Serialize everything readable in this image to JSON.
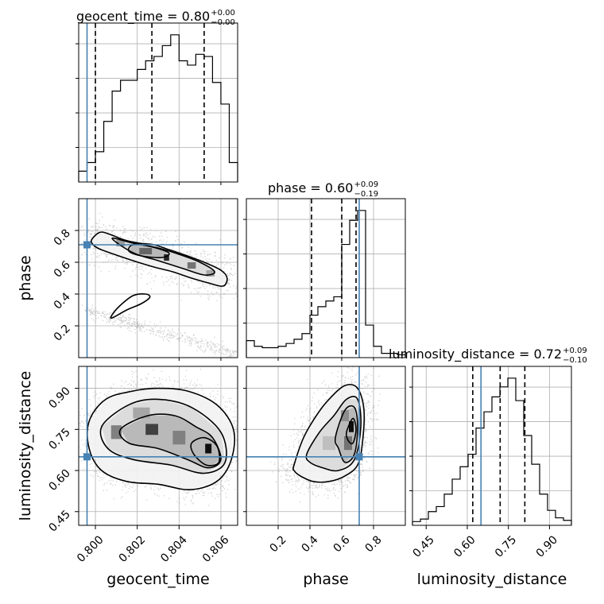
{
  "chart_data": {
    "type": "corner",
    "parameters": [
      "geocent_time",
      "phase",
      "luminosity_distance"
    ],
    "ranges": {
      "geocent_time": [
        0.7992,
        0.8068
      ],
      "phase": [
        0.0,
        1.0
      ],
      "luminosity_distance": [
        0.4,
        0.98
      ]
    },
    "ticks": {
      "geocent_time": [
        0.8,
        0.802,
        0.804,
        0.806
      ],
      "phase": [
        0.2,
        0.4,
        0.6,
        0.8
      ],
      "luminosity_distance": [
        0.45,
        0.6,
        0.75,
        0.9
      ]
    },
    "tick_labels": {
      "geocent_time": [
        "0.800",
        "0.802",
        "0.804",
        "0.806"
      ],
      "phase": [
        "0.2",
        "0.4",
        "0.6",
        "0.8"
      ],
      "luminosity_distance": [
        "0.45",
        "0.60",
        "0.75",
        "0.90"
      ]
    },
    "truths": {
      "geocent_time": 0.7996,
      "phase": 0.71,
      "luminosity_distance": 0.65
    },
    "titles": [
      {
        "param": "geocent_time",
        "label": "geocent_time = 0.80",
        "plus": "+0.00",
        "minus": "−0.00"
      },
      {
        "param": "phase",
        "label": "phase = 0.60",
        "plus": "+0.09",
        "minus": "−0.19"
      },
      {
        "param": "luminosity_distance",
        "label": "luminosity_distance = 0.72",
        "plus": "+0.09",
        "minus": "−0.10"
      }
    ],
    "histograms": {
      "geocent_time": {
        "edges": [
          0.7992,
          0.7996,
          0.8,
          0.8004,
          0.8008,
          0.8012,
          0.8016,
          0.802,
          0.8024,
          0.8028,
          0.8032,
          0.8036,
          0.804,
          0.8044,
          0.8048,
          0.8052,
          0.8056,
          0.806,
          0.8064,
          0.8068
        ],
        "counts": [
          5,
          9,
          14,
          28,
          42,
          47,
          47,
          52,
          56,
          58,
          63,
          68,
          56,
          54,
          59,
          58,
          46,
          36,
          9
        ],
        "quantiles": [
          0.8,
          0.8027,
          0.8052
        ]
      },
      "phase": {
        "edges": [
          0.0,
          0.05,
          0.1,
          0.15,
          0.2,
          0.25,
          0.3,
          0.35,
          0.4,
          0.45,
          0.5,
          0.55,
          0.6,
          0.65,
          0.7,
          0.75,
          0.8,
          0.85,
          0.9,
          0.95,
          1.0
        ],
        "counts": [
          12,
          8,
          7,
          7,
          8,
          10,
          13,
          17,
          30,
          36,
          40,
          43,
          80,
          97,
          104,
          23,
          8,
          3,
          3,
          2
        ],
        "quantiles": [
          0.41,
          0.6,
          0.69
        ]
      },
      "luminosity_distance": {
        "edges": [
          0.4,
          0.429,
          0.458,
          0.487,
          0.516,
          0.545,
          0.574,
          0.603,
          0.632,
          0.661,
          0.69,
          0.719,
          0.748,
          0.777,
          0.806,
          0.835,
          0.864,
          0.893,
          0.922,
          0.951,
          0.98
        ],
        "counts": [
          3,
          5,
          11,
          15,
          25,
          37,
          47,
          57,
          78,
          91,
          103,
          111,
          118,
          100,
          72,
          49,
          25,
          12,
          6,
          4
        ],
        "quantiles": [
          0.62,
          0.72,
          0.81
        ]
      }
    },
    "contours_2d": {
      "geocent_time_vs_phase": {
        "levels": [
          {
            "x": [
              0.8,
              0.8003,
              0.8008,
              0.8014,
              0.8021,
              0.8028,
              0.8035,
              0.8044,
              0.8052,
              0.806,
              0.8063,
              0.8061,
              0.8054,
              0.8046,
              0.8037,
              0.8028,
              0.8018,
              0.8009,
              0.8001,
              0.7998
            ],
            "y": [
              0.77,
              0.79,
              0.77,
              0.74,
              0.72,
              0.71,
              0.68,
              0.64,
              0.6,
              0.55,
              0.5,
              0.45,
              0.47,
              0.5,
              0.54,
              0.57,
              0.61,
              0.65,
              0.69,
              0.73
            ]
          },
          {
            "x": [
              0.8008,
              0.8018,
              0.803,
              0.804,
              0.805,
              0.8057,
              0.8052,
              0.8042,
              0.803,
              0.8018
            ],
            "y": [
              0.75,
              0.72,
              0.69,
              0.65,
              0.6,
              0.54,
              0.52,
              0.56,
              0.61,
              0.66
            ]
          },
          {
            "x": [
              0.8018,
              0.8026,
              0.8035,
              0.8032,
              0.8022,
              0.8016
            ],
            "y": [
              0.71,
              0.7,
              0.66,
              0.63,
              0.64,
              0.67
            ]
          },
          {
            "x": [
              0.8008,
              0.8015,
              0.8022,
              0.8026,
              0.8024,
              0.8018,
              0.8012,
              0.8008
            ],
            "y": [
              0.25,
              0.3,
              0.34,
              0.38,
              0.4,
              0.39,
              0.33,
              0.27
            ]
          }
        ],
        "density_peaks": [
          {
            "x": 0.8034,
            "y": 0.63,
            "w": 0.00025,
            "h": 0.04,
            "shade": 0.85
          },
          {
            "x": 0.8024,
            "y": 0.67,
            "w": 0.0006,
            "h": 0.04,
            "shade": 0.6
          },
          {
            "x": 0.8046,
            "y": 0.58,
            "w": 0.0004,
            "h": 0.04,
            "shade": 0.55
          },
          {
            "x": 0.8012,
            "y": 0.72,
            "w": 0.0004,
            "h": 0.04,
            "shade": 0.4
          },
          {
            "x": 0.8055,
            "y": 0.53,
            "w": 0.0004,
            "h": 0.04,
            "shade": 0.35
          }
        ]
      },
      "geocent_time_vs_luminosity_distance": {
        "levels": [
          {
            "x": [
              0.7997,
              0.8005,
              0.8018,
              0.803,
              0.8044,
              0.8058,
              0.8066,
              0.8065,
              0.8058,
              0.8045,
              0.803,
              0.8015,
              0.8003,
              0.7997
            ],
            "y": [
              0.78,
              0.86,
              0.89,
              0.9,
              0.89,
              0.84,
              0.75,
              0.64,
              0.56,
              0.53,
              0.55,
              0.56,
              0.6,
              0.68
            ]
          },
          {
            "x": [
              0.8003,
              0.8016,
              0.803,
              0.8046,
              0.806,
              0.8062,
              0.8052,
              0.8036,
              0.8018,
              0.8006
            ],
            "y": [
              0.76,
              0.84,
              0.86,
              0.83,
              0.74,
              0.63,
              0.59,
              0.62,
              0.64,
              0.68
            ]
          },
          {
            "x": [
              0.8012,
              0.8025,
              0.8038,
              0.8048,
              0.8056,
              0.806,
              0.8054,
              0.8044,
              0.803,
              0.8016
            ],
            "y": [
              0.75,
              0.8,
              0.8,
              0.76,
              0.72,
              0.64,
              0.61,
              0.64,
              0.68,
              0.7
            ]
          },
          {
            "x": [
              0.8046,
              0.8052,
              0.8058,
              0.8059,
              0.8053,
              0.8047
            ],
            "y": [
              0.7,
              0.72,
              0.69,
              0.63,
              0.62,
              0.66
            ]
          }
        ],
        "density_peaks": [
          {
            "x": 0.8027,
            "y": 0.75,
            "w": 0.0006,
            "h": 0.04,
            "shade": 0.75
          },
          {
            "x": 0.8054,
            "y": 0.68,
            "w": 0.0003,
            "h": 0.035,
            "shade": 0.95
          },
          {
            "x": 0.801,
            "y": 0.74,
            "w": 0.0005,
            "h": 0.05,
            "shade": 0.5
          },
          {
            "x": 0.804,
            "y": 0.72,
            "w": 0.0006,
            "h": 0.05,
            "shade": 0.5
          },
          {
            "x": 0.8022,
            "y": 0.81,
            "w": 0.0008,
            "h": 0.04,
            "shade": 0.35
          }
        ]
      },
      "phase_vs_luminosity_distance": {
        "levels": [
          {
            "x": [
              0.3,
              0.36,
              0.44,
              0.52,
              0.62,
              0.7,
              0.74,
              0.73,
              0.7,
              0.62,
              0.52,
              0.42,
              0.34,
              0.3
            ],
            "y": [
              0.62,
              0.72,
              0.8,
              0.86,
              0.91,
              0.9,
              0.82,
              0.7,
              0.62,
              0.58,
              0.56,
              0.56,
              0.58,
              0.6
            ]
          },
          {
            "x": [
              0.38,
              0.46,
              0.55,
              0.63,
              0.7,
              0.72,
              0.68,
              0.58,
              0.48,
              0.4
            ],
            "y": [
              0.66,
              0.74,
              0.8,
              0.86,
              0.86,
              0.76,
              0.64,
              0.6,
              0.61,
              0.63
            ]
          },
          {
            "x": [
              0.56,
              0.62,
              0.68,
              0.7,
              0.68,
              0.62,
              0.58
            ],
            "y": [
              0.72,
              0.82,
              0.83,
              0.76,
              0.66,
              0.63,
              0.68
            ]
          },
          {
            "x": [
              0.63,
              0.67,
              0.69,
              0.67,
              0.64
            ],
            "y": [
              0.74,
              0.79,
              0.75,
              0.7,
              0.71
            ]
          }
        ],
        "density_peaks": [
          {
            "x": 0.66,
            "y": 0.76,
            "w": 0.03,
            "h": 0.04,
            "shade": 0.95
          },
          {
            "x": 0.64,
            "y": 0.7,
            "w": 0.05,
            "h": 0.05,
            "shade": 0.55
          },
          {
            "x": 0.62,
            "y": 0.8,
            "w": 0.05,
            "h": 0.04,
            "shade": 0.45
          },
          {
            "x": 0.52,
            "y": 0.7,
            "w": 0.08,
            "h": 0.05,
            "shade": 0.25
          }
        ]
      }
    },
    "grid": true,
    "colors": {
      "truth": "#4682b4",
      "contour": "#000000",
      "scatter": "#808080",
      "grid": "#b0b0b0"
    }
  }
}
